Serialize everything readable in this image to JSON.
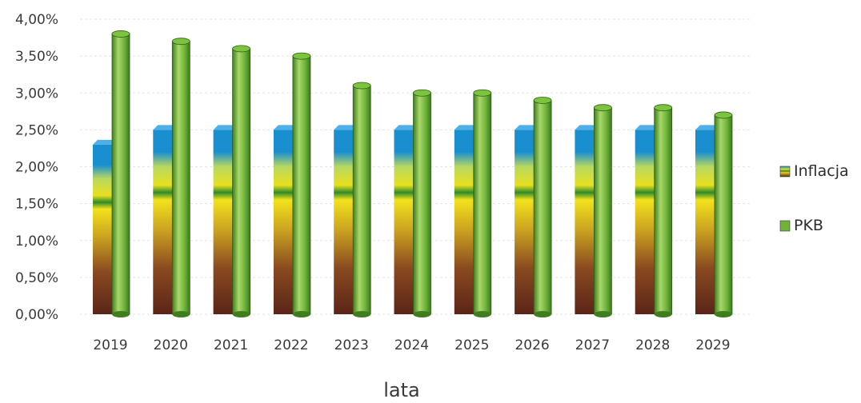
{
  "chart_data": {
    "type": "bar",
    "categories": [
      "2019",
      "2020",
      "2021",
      "2022",
      "2023",
      "2024",
      "2025",
      "2026",
      "2027",
      "2028",
      "2029"
    ],
    "series": [
      {
        "name": "Inflacja",
        "values": [
          2.3,
          2.5,
          2.5,
          2.5,
          2.5,
          2.5,
          2.5,
          2.5,
          2.5,
          2.5,
          2.5
        ]
      },
      {
        "name": "PKB",
        "values": [
          3.8,
          3.7,
          3.6,
          3.5,
          3.1,
          3.0,
          3.0,
          2.9,
          2.8,
          2.8,
          2.7
        ]
      }
    ],
    "title": "",
    "xlabel": "lata",
    "ylabel": "",
    "ylim": [
      0,
      4.0
    ],
    "yticks": [
      "0,00%",
      "0,50%",
      "1,00%",
      "1,50%",
      "2,00%",
      "2,50%",
      "3,00%",
      "3,50%",
      "4,00%"
    ],
    "legend_position": "right",
    "colors": {
      "pkb": "#6fb33a",
      "pkb_light": "#a8d86a",
      "pkb_dark": "#3f7d1e",
      "inflation_top": "#1a8fd0",
      "inflation_mid": "#e8e020",
      "inflation_green": "#2f8a2a",
      "inflation_bottom": "#5a2418"
    }
  }
}
